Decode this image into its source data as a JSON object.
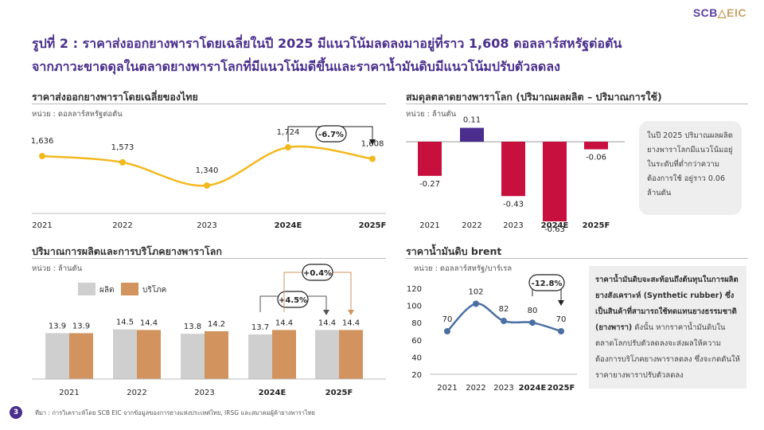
{
  "brand": {
    "primary": "SCB",
    "secondary": "EIC",
    "color_primary": "#5b3fa0",
    "color_secondary": "#c9a36a"
  },
  "slide": {
    "title_line1": "รูปที่ 2 : ราคาส่งออกยางพาราโดยเฉลี่ยในปี 2025 มีแนวโน้มลดลงมาอยู่ที่ราว 1,608 ดอลลาร์สหรัฐต่อตัน",
    "title_line2": "จากภาวะขาดดุลในตลาดยางพาราโลกที่มีแนวโน้มดีขึ้นและราคาน้ำมันดิบมีแนวโน้มปรับตัวลดลง",
    "page_number": "3",
    "source": "ที่มา : การวิเคราะห์โดย SCB EIC จากข้อมูลของการยางแห่งประเทศไทย, IRSG และสมาคมผู้ค้ายางพาราไทย"
  },
  "notes": {
    "balance_note": "ในปี 2025 ปริมาณผลผลิตยางพาราโลกมีแนวโน้มอยู่ในระดับที่ต่ำกว่าความต้องการใช้ อยู่ราว 0.06 ล้านตัน",
    "oil_note_bold": "ราคาน้ำมันดิบจะสะท้อนถึงต้นทุนในการผลิตยางสังเคราะห์ (Synthetic rubber) ซึ่งเป็นสินค้าที่สามารถใช้ทดแทนยางธรรมชาติ (ยางพารา)",
    "oil_note_rest": " ดังนั้น หากราคาน้ำมันดิบในตลาดโลกปรับตัวลดลงจะส่งผลให้ความต้องการบริโภคยางพาราลดลง ซึ่งจะกดดันให้ราคายางพาราปรับตัวลดลง"
  },
  "chart_data": [
    {
      "type": "line",
      "title": "ราคาส่งออกยางพาราโดยเฉลี่ยของไทย",
      "unit": "หน่วย : ดอลลาร์สหรัฐต่อตัน",
      "categories": [
        "2021",
        "2022",
        "2023",
        "2024E",
        "2025F"
      ],
      "values": [
        1636,
        1573,
        1340,
        1724,
        1608
      ],
      "value_labels": [
        "1,636",
        "1,573",
        "1,340",
        "1,724",
        "1,608"
      ],
      "color": "#f2b91f",
      "smooth": true,
      "annotation": "-6.7%"
    },
    {
      "type": "bar",
      "title": "สมดุลตลาดยางพาราโลก (ปริมาณผลผลิต – ปริมาณการใช้)",
      "unit": "หน่วย : ล้านตัน",
      "categories": [
        "2021",
        "2022",
        "2023",
        "2024E",
        "2025F"
      ],
      "values": [
        -0.27,
        0.11,
        -0.43,
        -0.63,
        -0.06
      ],
      "value_labels": [
        "-0.27",
        "0.11",
        "-0.43",
        "-0.63",
        "-0.06"
      ],
      "colors": {
        "negative": "#c8103e",
        "positive": "#4a2d8c"
      }
    },
    {
      "type": "bar",
      "title": "ปริมาณการผลิตและการบริโภคยางพาราโลก",
      "unit": "หน่วย : ล้านตัน",
      "categories": [
        "2021",
        "2022",
        "2023",
        "2024E",
        "2025F"
      ],
      "series": [
        {
          "name": "ผลิต",
          "values": [
            13.9,
            14.5,
            13.8,
            13.7,
            14.4
          ],
          "color": "#cfcfcf"
        },
        {
          "name": "บริโภค",
          "values": [
            13.9,
            14.4,
            14.2,
            14.4,
            14.4
          ],
          "color": "#d2935f"
        }
      ],
      "annotations": [
        "+4.5%",
        "+0.4%"
      ]
    },
    {
      "type": "line",
      "title": "ราคาน้ำมันดิบ brent",
      "unit": "หน่วย : ดอลลาร์สหรัฐ/บาร์เรล",
      "categories": [
        "2021",
        "2022",
        "2023",
        "2024E",
        "2025F"
      ],
      "values": [
        70,
        102,
        82,
        80,
        70
      ],
      "value_labels": [
        "70",
        "102",
        "82",
        "80",
        "70"
      ],
      "ylim": [
        20,
        120
      ],
      "yticks": [
        "120",
        "100",
        "80",
        "60",
        "40",
        "20"
      ],
      "color": "#4a6fa5",
      "grid": false,
      "annotation": "-12.8%"
    }
  ]
}
